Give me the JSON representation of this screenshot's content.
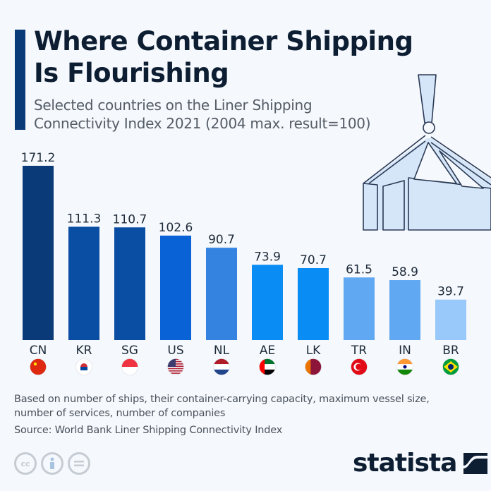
{
  "header": {
    "title_line1": "Where Container Shipping",
    "title_line2": "Is Flourishing",
    "subtitle_line1": "Selected countries on the Liner Shipping",
    "subtitle_line2": "Connectivity Index 2021 (2004 max. result=100)"
  },
  "chart_data": {
    "type": "bar",
    "title": "Where Container Shipping Is Flourishing",
    "subtitle": "Selected countries on the Liner Shipping Connectivity Index 2021 (2004 max. result=100)",
    "categories": [
      "CN",
      "KR",
      "SG",
      "US",
      "NL",
      "AE",
      "LK",
      "TR",
      "IN",
      "BR"
    ],
    "values": [
      171.2,
      111.3,
      110.7,
      102.6,
      90.7,
      73.9,
      70.7,
      61.5,
      58.9,
      39.7
    ],
    "value_labels": [
      "171.2",
      "111.3",
      "110.7",
      "102.6",
      "90.7",
      "73.9",
      "70.7",
      "61.5",
      "58.9",
      "39.7"
    ],
    "bar_colors": [
      "#0b3a78",
      "#0a4ea3",
      "#0a4ea3",
      "#0a63d6",
      "#3483e0",
      "#0a8cf5",
      "#0a8cf5",
      "#60a8f2",
      "#60a8f2",
      "#98c9fa"
    ],
    "flags": [
      "china-flag",
      "south-korea-flag",
      "singapore-flag",
      "usa-flag",
      "netherlands-flag",
      "uae-flag",
      "sri-lanka-flag",
      "turkey-flag",
      "india-flag",
      "brazil-flag"
    ],
    "xlabel": "",
    "ylabel": "",
    "ylim": [
      0,
      171.2
    ],
    "grid": false,
    "legend": "none"
  },
  "footer": {
    "note_line1": "Based on number of ships, their container-carrying capacity, maximum vessel size,",
    "note_line2": "number of services, number of companies",
    "source": "Source: World Bank Liner Shipping Connectivity Index",
    "cc_label": "cc",
    "logo": "statista"
  }
}
